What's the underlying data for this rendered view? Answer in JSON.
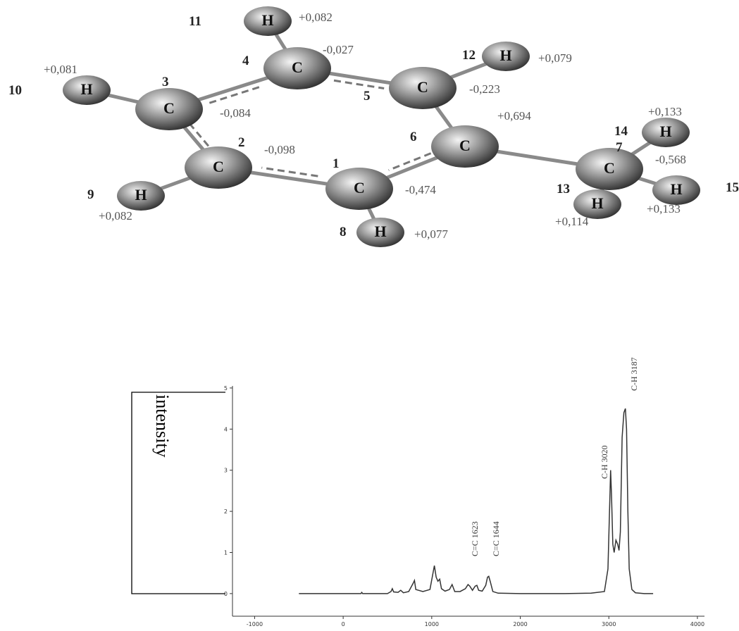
{
  "molecule": {
    "atoms": [
      {
        "number": "1",
        "element": "C",
        "charge": "-0,474"
      },
      {
        "number": "2",
        "element": "C",
        "charge": "-0,098"
      },
      {
        "number": "3",
        "element": "C",
        "charge": "-0,084"
      },
      {
        "number": "4",
        "element": "C",
        "charge": "-0,027"
      },
      {
        "number": "5",
        "element": "C",
        "charge": "-0,223"
      },
      {
        "number": "6",
        "element": "C",
        "charge": "+0,694"
      },
      {
        "number": "7",
        "element": "C",
        "charge": "-0,568"
      },
      {
        "number": "8",
        "element": "H",
        "charge": "+0,077"
      },
      {
        "number": "9",
        "element": "H",
        "charge": "+0,082"
      },
      {
        "number": "10",
        "element": "H",
        "charge": "+0,081"
      },
      {
        "number": "11",
        "element": "H",
        "charge": "+0,082"
      },
      {
        "number": "12",
        "element": "H",
        "charge": "+0,079"
      },
      {
        "number": "13",
        "element": "H",
        "charge": "+0,114"
      },
      {
        "number": "14",
        "element": "H",
        "charge": "+0,133"
      },
      {
        "number": "15",
        "element": "H",
        "charge": "+0,133"
      }
    ]
  },
  "chart_data": {
    "type": "line",
    "y_label": "intensity",
    "x": [
      -500,
      0,
      200,
      210,
      220,
      400,
      500,
      540,
      555,
      570,
      620,
      650,
      680,
      740,
      790,
      805,
      820,
      900,
      980,
      1010,
      1030,
      1050,
      1070,
      1090,
      1110,
      1150,
      1200,
      1230,
      1260,
      1320,
      1380,
      1410,
      1430,
      1460,
      1490,
      1510,
      1530,
      1570,
      1610,
      1630,
      1644,
      1660,
      1690,
      1750,
      2000,
      2500,
      2800,
      2950,
      2990,
      3010,
      3020,
      3030,
      3045,
      3060,
      3080,
      3100,
      3115,
      3130,
      3150,
      3170,
      3187,
      3200,
      3215,
      3230,
      3260,
      3300,
      3400,
      3500
    ],
    "series": [
      {
        "color": "#333333",
        "values": [
          0,
          0,
          0,
          0.03,
          0,
          0,
          0,
          0.05,
          0.12,
          0.04,
          0.03,
          0.08,
          0.02,
          0.05,
          0.25,
          0.32,
          0.1,
          0.05,
          0.1,
          0.45,
          0.68,
          0.4,
          0.3,
          0.35,
          0.12,
          0.06,
          0.1,
          0.22,
          0.05,
          0.05,
          0.12,
          0.22,
          0.18,
          0.08,
          0.18,
          0.2,
          0.08,
          0.06,
          0.2,
          0.4,
          0.42,
          0.3,
          0.05,
          0.01,
          0,
          0,
          0.01,
          0.05,
          0.6,
          2.2,
          3.0,
          2.4,
          1.2,
          1.0,
          1.3,
          1.2,
          1.05,
          1.5,
          3.8,
          4.4,
          4.5,
          4.0,
          2.0,
          0.6,
          0.1,
          0.02,
          0,
          0
        ]
      }
    ],
    "annotations": [
      "C=C 1623",
      "C=C 1644",
      "C-H 3020",
      "C-H 3187"
    ],
    "xlim": [
      -1250,
      4080
    ],
    "ylim": [
      -0.55,
      5.05
    ],
    "xticks": [
      -1000,
      0,
      1000,
      2000,
      3000,
      4000
    ],
    "yticks": [
      0,
      1,
      2,
      3,
      4,
      5
    ]
  }
}
